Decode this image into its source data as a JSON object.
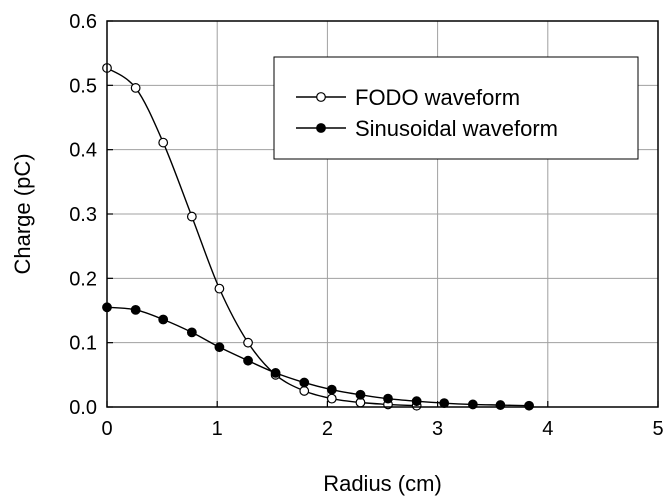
{
  "chart_data": {
    "type": "line",
    "title": "",
    "xlabel": "Radius (cm)",
    "ylabel": "Charge (pC)",
    "xlim": [
      0,
      5
    ],
    "ylim": [
      0,
      0.6
    ],
    "xticks": [
      0,
      1,
      2,
      3,
      4,
      5
    ],
    "yticks": [
      0.0,
      0.1,
      0.2,
      0.3,
      0.4,
      0.5,
      0.6
    ],
    "xtick_labels": [
      "0",
      "1",
      "2",
      "3",
      "4",
      "5"
    ],
    "ytick_labels": [
      "0.0",
      "0.1",
      "0.2",
      "0.3",
      "0.4",
      "0.5",
      "0.6"
    ],
    "grid": true,
    "legend_position": "top-right",
    "series": [
      {
        "name": "FODO waveform",
        "marker": "open-circle",
        "color": "#000000",
        "x": [
          0,
          0.26,
          0.51,
          0.77,
          1.02,
          1.28,
          1.53,
          1.79,
          2.04,
          2.3,
          2.55,
          2.81
        ],
        "y": [
          0.527,
          0.496,
          0.411,
          0.296,
          0.184,
          0.1,
          0.05,
          0.025,
          0.013,
          0.007,
          0.004,
          0.002
        ]
      },
      {
        "name": "Sinusoidal waveform",
        "marker": "filled-circle",
        "color": "#000000",
        "x": [
          0,
          0.26,
          0.51,
          0.77,
          1.02,
          1.28,
          1.53,
          1.79,
          2.04,
          2.3,
          2.55,
          2.81,
          3.06,
          3.32,
          3.57,
          3.83
        ],
        "y": [
          0.155,
          0.151,
          0.136,
          0.116,
          0.093,
          0.072,
          0.053,
          0.038,
          0.027,
          0.019,
          0.013,
          0.009,
          0.006,
          0.004,
          0.003,
          0.002
        ]
      }
    ]
  }
}
